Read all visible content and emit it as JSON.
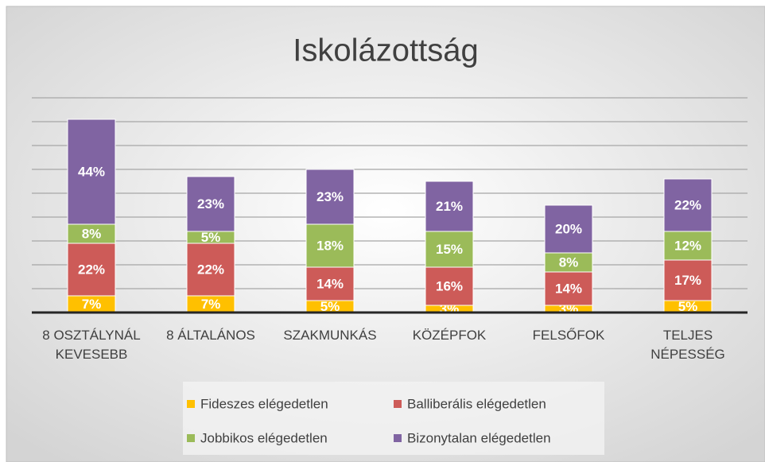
{
  "chart_data": {
    "type": "stacked_bar",
    "title": "Iskolázottság",
    "categories": [
      "8 OSZTÁLYNÁL\nKEVESEBB",
      "8 ÁLTALÁNOS",
      "SZAKMUNKÁS",
      "KÖZÉPFOK",
      "FELSŐFOK",
      "TELJES\nNÉPESSÉG"
    ],
    "series": [
      {
        "name": "Fideszes elégedetlen",
        "color": "#ffc000",
        "values": [
          7,
          7,
          5,
          3,
          3,
          5
        ],
        "value_labels": [
          "7%",
          "7%",
          "5%",
          "3%",
          "3%",
          "5%"
        ]
      },
      {
        "name": "Balliberális elégedetlen",
        "color": "#cd5b58",
        "values": [
          22,
          22,
          14,
          16,
          14,
          17
        ],
        "value_labels": [
          "22%",
          "22%",
          "14%",
          "16%",
          "14%",
          "17%"
        ]
      },
      {
        "name": "Jobbikos elégedetlen",
        "color": "#9bbb59",
        "values": [
          8,
          5,
          18,
          15,
          8,
          12
        ],
        "value_labels": [
          "8%",
          "5%",
          "18%",
          "15%",
          "8%",
          "12%"
        ]
      },
      {
        "name": "Bizonytalan elégedetlen",
        "color": "#8064a2",
        "values": [
          44,
          23,
          23,
          21,
          20,
          22
        ],
        "value_labels": [
          "44%",
          "23%",
          "23%",
          "21%",
          "20%",
          "22%"
        ]
      }
    ],
    "ylim": [
      0,
      90
    ],
    "yticks": [
      0,
      10,
      20,
      30,
      40,
      50,
      60,
      70,
      80,
      90
    ],
    "grid": true
  }
}
